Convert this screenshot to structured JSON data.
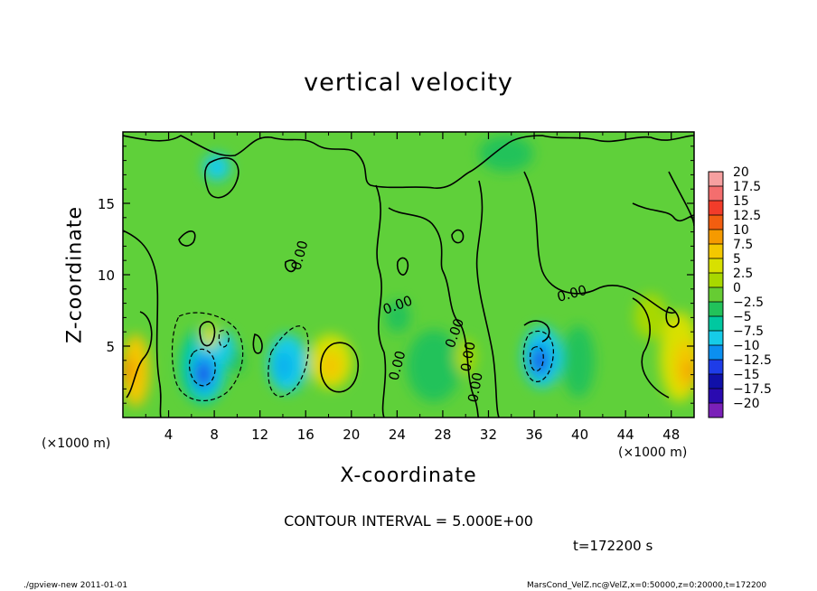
{
  "chart_data": {
    "type": "heatmap",
    "title": "vertical velocity",
    "xlabel": "X-coordinate",
    "ylabel": "Z-coordinate",
    "x_unit": "(×1000 m)",
    "y_unit": "(×1000 m)",
    "xlim": [
      0,
      50
    ],
    "ylim": [
      0,
      20
    ],
    "x_ticks": [
      4,
      8,
      12,
      16,
      20,
      24,
      28,
      32,
      36,
      40,
      44,
      48
    ],
    "y_ticks": [
      5,
      10,
      15
    ],
    "colorbar_labels": [
      "20",
      "17.5",
      "15",
      "12.5",
      "10",
      "7.5",
      "5",
      "2.5",
      "0",
      "−2.5",
      "−5",
      "−7.5",
      "−10",
      "−12.5",
      "−15",
      "−17.5",
      "−20"
    ],
    "colorbar_colors": [
      "#f6a0a0",
      "#f46e6e",
      "#f23c2a",
      "#f25e10",
      "#f59a00",
      "#f3c800",
      "#d8e000",
      "#a8d800",
      "#66cc33",
      "#22c25a",
      "#00c8a0",
      "#16cce8",
      "#0b8ff0",
      "#1e3ce8",
      "#1010a8",
      "#2a0ab0",
      "#7a20b8"
    ],
    "contour_labels": [
      "0.00",
      "0.00",
      "0.00",
      "0.00",
      "0.00",
      "0.00",
      "0.00"
    ],
    "contour_interval": "CONTOUR INTERVAL = 5.000E+00",
    "time": "t=172200 s"
  },
  "footer": {
    "left": "./gpview-new   2011-01-01",
    "right": "MarsCond_VelZ.nc@VelZ,x=0:50000,z=0:20000,t=172200"
  }
}
